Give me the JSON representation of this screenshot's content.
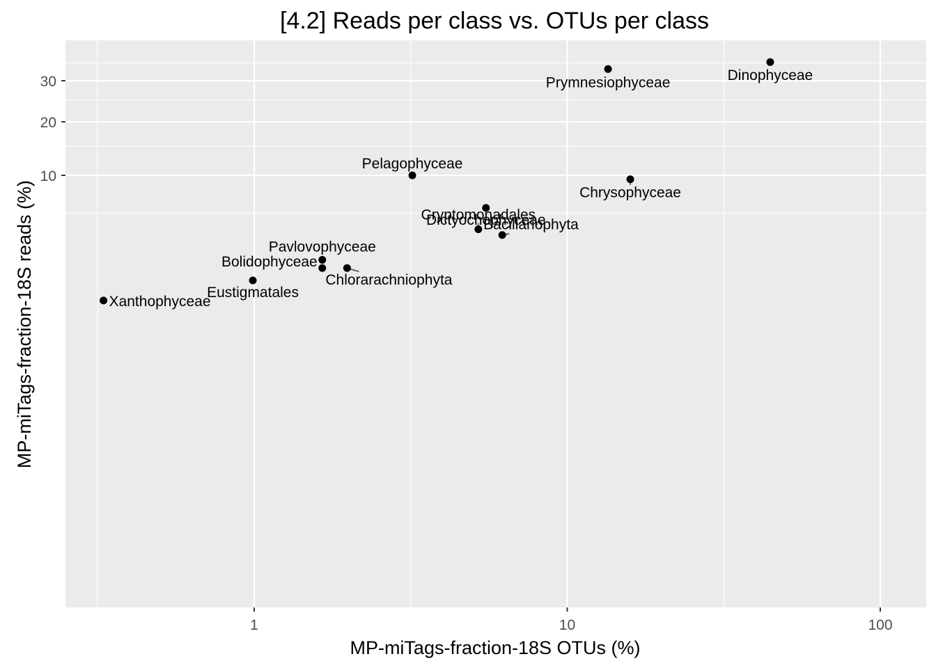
{
  "chart_data": {
    "type": "scatter",
    "title": "[4.2] Reads per class vs. OTUs per class",
    "xlabel": "MP-miTags-fraction-18S OTUs (%)",
    "ylabel": "MP-miTags-fraction-18S reads (%)",
    "x_scale": "log10",
    "y_scale": "sqrt",
    "xlim": [
      0.33,
      125
    ],
    "ylim": [
      0,
      44
    ],
    "x_ticks": [
      {
        "value": 1,
        "label": "1"
      },
      {
        "value": 10,
        "label": "10"
      },
      {
        "value": 100,
        "label": "100"
      }
    ],
    "y_ticks": [
      {
        "value": 10,
        "label": "10"
      },
      {
        "value": 20,
        "label": "20"
      },
      {
        "value": 30,
        "label": "30"
      }
    ],
    "x_minor_gridlines": [
      0.316,
      3.16,
      31.6
    ],
    "y_minor_gridlines": [
      5,
      15,
      25,
      35
    ],
    "grid": true,
    "background": "#ebebeb",
    "gridline_color": "#ffffff",
    "point_color": "#000000",
    "segment_color": "#666666",
    "points": [
      {
        "label": "Dinophyceae",
        "x": 44.5,
        "y": 35.2
      },
      {
        "label": "Prymnesiophyceae",
        "x": 13.5,
        "y": 33.2
      },
      {
        "label": "Pelagophyceae",
        "x": 3.2,
        "y": 10.0
      },
      {
        "label": "Chrysophyceae",
        "x": 15.9,
        "y": 9.4
      },
      {
        "label": "Dictyochophyceae",
        "x": 5.5,
        "y": 5.6
      },
      {
        "label": "Cryptomonadales",
        "x": 5.2,
        "y": 3.4
      },
      {
        "label": "Bacillariophyta",
        "x": 6.2,
        "y": 2.9
      },
      {
        "label": "Pavlovophyceae",
        "x": 1.65,
        "y": 1.2
      },
      {
        "label": "Bolidophyceae",
        "x": 1.65,
        "y": 0.8
      },
      {
        "label": "Chlorarachniophyta",
        "x": 1.98,
        "y": 0.8
      },
      {
        "label": "Eustigmatales",
        "x": 0.99,
        "y": 0.35
      },
      {
        "label": "Xanthophyceae",
        "x": 0.33,
        "y": 0.01
      }
    ]
  }
}
